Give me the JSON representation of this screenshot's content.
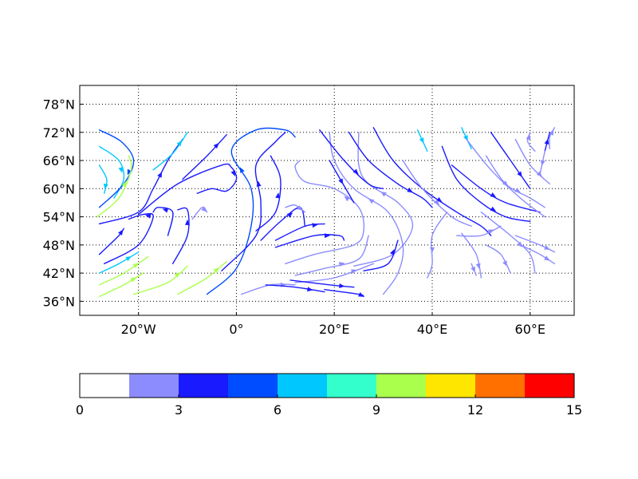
{
  "chart_data": {
    "type": "streamplot",
    "title": "",
    "xlabel": "",
    "ylabel": "",
    "xlim": [
      -32,
      69
    ],
    "ylim": [
      33,
      82
    ],
    "grid": true,
    "xticks": [
      {
        "value": -20,
        "label": "20°W"
      },
      {
        "value": 0,
        "label": "0°"
      },
      {
        "value": 20,
        "label": "20°E"
      },
      {
        "value": 40,
        "label": "40°E"
      },
      {
        "value": 60,
        "label": "60°E"
      }
    ],
    "yticks": [
      {
        "value": 36,
        "label": "36°N"
      },
      {
        "value": 42,
        "label": "42°N"
      },
      {
        "value": 48,
        "label": "48°N"
      },
      {
        "value": 54,
        "label": "54°N"
      },
      {
        "value": 60,
        "label": "60°N"
      },
      {
        "value": 66,
        "label": "66°N"
      },
      {
        "value": 72,
        "label": "72°N"
      },
      {
        "value": 78,
        "label": "78°N"
      }
    ],
    "colorbar": {
      "orientation": "horizontal",
      "boundaries": [
        0,
        1.5,
        3,
        4.5,
        6,
        7.5,
        9,
        10.5,
        12,
        13.5,
        15
      ],
      "colors": [
        "#ffffff",
        "#8c8cff",
        "#1a1aff",
        "#004cff",
        "#00c8ff",
        "#33ffcc",
        "#aaff4d",
        "#ffe600",
        "#ff7000",
        "#ff0000"
      ],
      "tick_values": [
        0,
        3,
        6,
        9,
        12,
        15
      ],
      "tick_labels": [
        "0",
        "3",
        "6",
        "9",
        "12",
        "15"
      ]
    },
    "streamlines": [
      {
        "speed": 7,
        "points": [
          [
            -28,
            65
          ],
          [
            -26.5,
            62
          ],
          [
            -27,
            59
          ]
        ]
      },
      {
        "speed": 6,
        "points": [
          [
            -28,
            69
          ],
          [
            -24,
            66
          ],
          [
            -23,
            62
          ],
          [
            -25,
            58
          ]
        ]
      },
      {
        "speed": 5,
        "points": [
          [
            -28,
            72.5
          ],
          [
            -23.5,
            70
          ],
          [
            -21,
            66
          ],
          [
            -23,
            61
          ],
          [
            -28,
            56
          ]
        ]
      },
      {
        "speed": 9,
        "points": [
          [
            -28.5,
            54
          ],
          [
            -24,
            58
          ],
          [
            -21.5,
            64
          ],
          [
            -22,
            67
          ]
        ]
      },
      {
        "speed": 3,
        "points": [
          [
            -28,
            52.5
          ],
          [
            -20,
            55
          ],
          [
            -17,
            60
          ],
          [
            -14,
            66
          ],
          [
            -11,
            70.5
          ]
        ]
      },
      {
        "speed": 6,
        "points": [
          [
            -17,
            64
          ],
          [
            -13,
            67.5
          ],
          [
            -10,
            72
          ]
        ]
      },
      {
        "speed": 3,
        "points": [
          [
            -11,
            62
          ],
          [
            -6,
            67
          ],
          [
            -2,
            71.5
          ]
        ]
      },
      {
        "speed": 4,
        "points": [
          [
            -28,
            46
          ],
          [
            -24,
            50
          ],
          [
            -23,
            51.5
          ]
        ]
      },
      {
        "speed": 3,
        "points": [
          [
            -27,
            44
          ],
          [
            -20,
            48
          ],
          [
            -17,
            54
          ],
          [
            -19,
            54.5
          ],
          [
            -22,
            53.5
          ]
        ]
      },
      {
        "speed": 7,
        "points": [
          [
            -28,
            42
          ],
          [
            -24,
            44
          ],
          [
            -20,
            46.5
          ]
        ]
      },
      {
        "speed": 10,
        "points": [
          [
            -28,
            39.5
          ],
          [
            -23,
            42
          ],
          [
            -18,
            45.5
          ]
        ]
      },
      {
        "speed": 10,
        "points": [
          [
            -28,
            37
          ],
          [
            -23,
            39.5
          ],
          [
            -19,
            42
          ]
        ]
      },
      {
        "speed": 9,
        "points": [
          [
            -21,
            37.5
          ],
          [
            -14,
            40
          ],
          [
            -10,
            43.5
          ]
        ]
      },
      {
        "speed": 9,
        "points": [
          [
            -12,
            37.5
          ],
          [
            -6,
            41
          ],
          [
            -2,
            44.5
          ]
        ]
      },
      {
        "speed": 4,
        "points": [
          [
            -14,
            50
          ],
          [
            -13,
            55
          ],
          [
            -16,
            56
          ],
          [
            -17,
            55
          ]
        ]
      },
      {
        "speed": 4,
        "points": [
          [
            -13,
            44
          ],
          [
            -10,
            50
          ],
          [
            -10,
            55.5
          ],
          [
            -12,
            55.5
          ]
        ]
      },
      {
        "speed": 2,
        "points": [
          [
            -9,
            53.5
          ],
          [
            -7,
            56
          ],
          [
            -6,
            55
          ]
        ]
      },
      {
        "speed": 4,
        "points": [
          [
            -20,
            54.5
          ],
          [
            -12,
            61
          ],
          [
            -3,
            65
          ],
          [
            -1,
            64.5
          ],
          [
            0,
            62
          ],
          [
            -2,
            59.5
          ],
          [
            -5,
            60
          ],
          [
            -8,
            59
          ]
        ]
      },
      {
        "speed": 5,
        "points": [
          [
            -6,
            37.5
          ],
          [
            0,
            43
          ],
          [
            3,
            52
          ],
          [
            3,
            60
          ],
          [
            -1,
            68
          ],
          [
            4,
            72.5
          ],
          [
            10,
            72.5
          ],
          [
            12,
            71
          ]
        ]
      },
      {
        "speed": 4,
        "points": [
          [
            -3,
            42.5
          ],
          [
            4,
            50
          ],
          [
            5,
            57
          ],
          [
            4,
            65
          ],
          [
            8,
            70
          ],
          [
            10,
            72
          ]
        ]
      },
      {
        "speed": 4,
        "points": [
          [
            4,
            51
          ],
          [
            8,
            55
          ],
          [
            9,
            62
          ],
          [
            7,
            67
          ]
        ]
      },
      {
        "speed": 3,
        "points": [
          [
            5,
            49
          ],
          [
            9,
            53
          ],
          [
            13,
            56
          ],
          [
            14,
            52
          ]
        ]
      },
      {
        "speed": 2,
        "points": [
          [
            10,
            56
          ],
          [
            12,
            56.5
          ],
          [
            14,
            55
          ]
        ]
      },
      {
        "speed": 3,
        "points": [
          [
            8,
            49
          ],
          [
            14,
            52
          ],
          [
            18,
            52.5
          ]
        ]
      },
      {
        "speed": 3,
        "points": [
          [
            8,
            47.5
          ],
          [
            16,
            50
          ],
          [
            21,
            50
          ],
          [
            22,
            49
          ]
        ]
      },
      {
        "speed": 2,
        "points": [
          [
            10,
            44
          ],
          [
            16,
            46
          ],
          [
            24,
            48
          ],
          [
            26,
            51
          ],
          [
            25,
            56
          ],
          [
            20,
            60
          ],
          [
            14,
            61.5
          ],
          [
            12,
            64.5
          ],
          [
            13,
            66
          ]
        ]
      },
      {
        "speed": 2,
        "points": [
          [
            12,
            41.5
          ],
          [
            18,
            43
          ],
          [
            25,
            45
          ],
          [
            27,
            50
          ]
        ]
      },
      {
        "speed": 2,
        "points": [
          [
            12,
            40
          ],
          [
            20,
            41
          ],
          [
            28,
            44
          ]
        ]
      },
      {
        "speed": 2,
        "points": [
          [
            1,
            37.5
          ],
          [
            7,
            39.5
          ],
          [
            12,
            39.5
          ]
        ]
      },
      {
        "speed": 3,
        "points": [
          [
            6,
            39.5
          ],
          [
            12,
            39
          ],
          [
            18,
            38
          ]
        ]
      },
      {
        "speed": 3,
        "points": [
          [
            11,
            40.5
          ],
          [
            19,
            39.5
          ],
          [
            24,
            39
          ]
        ]
      },
      {
        "speed": 3,
        "points": [
          [
            18,
            38.5
          ],
          [
            25,
            37.5
          ],
          [
            26,
            37
          ]
        ]
      },
      {
        "speed": 2,
        "points": [
          [
            30,
            37.5
          ],
          [
            33,
            42
          ],
          [
            34,
            48
          ],
          [
            31,
            55
          ],
          [
            24,
            60
          ],
          [
            20,
            66
          ],
          [
            19,
            72
          ]
        ]
      },
      {
        "speed": 2,
        "points": [
          [
            24,
            43.5
          ],
          [
            32,
            46
          ],
          [
            36,
            52
          ],
          [
            33,
            57
          ],
          [
            27,
            61
          ],
          [
            25,
            65
          ],
          [
            25,
            72
          ]
        ]
      },
      {
        "speed": 3,
        "points": [
          [
            26,
            42.5
          ],
          [
            31,
            44
          ],
          [
            33,
            49
          ]
        ]
      },
      {
        "speed": 3,
        "points": [
          [
            19,
            66
          ],
          [
            24,
            57
          ]
        ]
      },
      {
        "speed": 4,
        "points": [
          [
            17,
            72.5
          ],
          [
            22,
            66
          ],
          [
            27,
            61
          ],
          [
            30,
            60
          ]
        ]
      },
      {
        "speed": 3,
        "points": [
          [
            23,
            72
          ],
          [
            27,
            66
          ],
          [
            33,
            61
          ],
          [
            38,
            58
          ],
          [
            40,
            56
          ]
        ]
      },
      {
        "speed": 4,
        "points": [
          [
            28,
            73
          ],
          [
            32,
            66
          ],
          [
            38,
            60
          ],
          [
            45,
            55
          ],
          [
            50,
            52
          ],
          [
            52,
            50
          ]
        ]
      },
      {
        "speed": 6,
        "points": [
          [
            37,
            72.5
          ],
          [
            39,
            68
          ]
        ]
      },
      {
        "speed": 2,
        "points": [
          [
            34,
            66
          ],
          [
            38,
            60
          ],
          [
            44,
            54
          ],
          [
            48,
            52
          ]
        ]
      },
      {
        "speed": 3,
        "points": [
          [
            42,
            69
          ],
          [
            45,
            62
          ],
          [
            50,
            57
          ],
          [
            55,
            54
          ],
          [
            60,
            53
          ]
        ]
      },
      {
        "speed": 6,
        "points": [
          [
            46,
            73
          ],
          [
            48,
            68.5
          ]
        ]
      },
      {
        "speed": 3,
        "points": [
          [
            44,
            65
          ],
          [
            50,
            60
          ],
          [
            55,
            57
          ],
          [
            62,
            55
          ]
        ]
      },
      {
        "speed": 2,
        "points": [
          [
            47,
            70.5
          ],
          [
            52,
            64
          ],
          [
            58,
            58
          ],
          [
            63,
            54
          ]
        ]
      },
      {
        "speed": 2,
        "points": [
          [
            51,
            67
          ],
          [
            55,
            61
          ],
          [
            60,
            58
          ],
          [
            63,
            56
          ]
        ]
      },
      {
        "speed": 3,
        "points": [
          [
            52,
            72
          ],
          [
            56,
            66
          ],
          [
            60,
            60
          ]
        ]
      },
      {
        "speed": 2,
        "points": [
          [
            57,
            70.5
          ],
          [
            60,
            65
          ],
          [
            64,
            61
          ]
        ]
      },
      {
        "speed": 3,
        "points": [
          [
            63,
            68
          ],
          [
            64,
            72
          ]
        ]
      },
      {
        "speed": 2,
        "points": [
          [
            61,
            68
          ],
          [
            59.5,
            70
          ],
          [
            60,
            72
          ]
        ]
      },
      {
        "speed": 2,
        "points": [
          [
            63,
            68
          ],
          [
            62,
            63
          ]
        ]
      },
      {
        "speed": 2,
        "points": [
          [
            64,
            68.5
          ],
          [
            64,
            71
          ],
          [
            65,
            73
          ]
        ]
      },
      {
        "speed": 2,
        "points": [
          [
            45,
            50
          ],
          [
            50,
            50
          ],
          [
            54,
            52
          ]
        ]
      },
      {
        "speed": 2,
        "points": [
          [
            43,
            55
          ],
          [
            40,
            50
          ],
          [
            40,
            44
          ],
          [
            39,
            41
          ]
        ]
      },
      {
        "speed": 2,
        "points": [
          [
            46,
            50.5
          ],
          [
            49,
            46
          ],
          [
            50,
            41
          ]
        ]
      },
      {
        "speed": 2,
        "points": [
          [
            51,
            48
          ],
          [
            54,
            46
          ],
          [
            56,
            42
          ]
        ]
      },
      {
        "speed": 2,
        "points": [
          [
            48,
            44
          ],
          [
            49,
            41.5
          ]
        ]
      },
      {
        "speed": 2,
        "points": [
          [
            50,
            55
          ],
          [
            56,
            50
          ],
          [
            60,
            46
          ],
          [
            61,
            42
          ]
        ]
      },
      {
        "speed": 2,
        "points": [
          [
            57,
            50
          ],
          [
            62,
            48
          ],
          [
            65,
            46.5
          ]
        ]
      },
      {
        "speed": 2,
        "points": [
          [
            58,
            48
          ],
          [
            62,
            46
          ],
          [
            65,
            44
          ]
        ]
      }
    ]
  }
}
